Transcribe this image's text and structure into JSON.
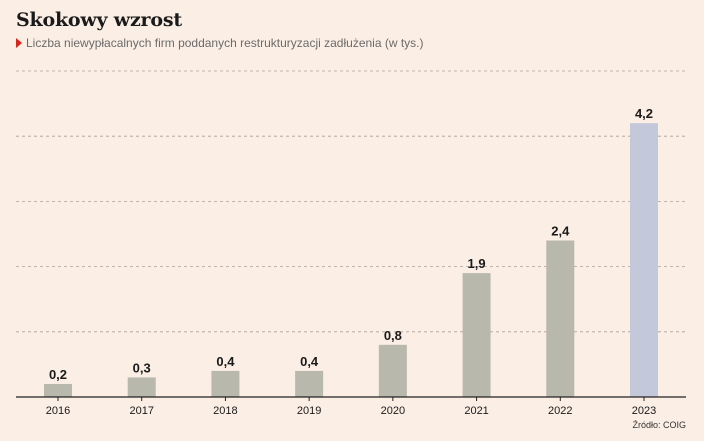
{
  "header": {
    "title": "Skokowy wzrost",
    "subtitle": "Liczba niewypłacalnych firm poddanych restrukturyzacji zadłużenia (w tys.)",
    "subtitle_marker_icon": "red-triangle-icon"
  },
  "footer": {
    "source": "Źródło: COIG"
  },
  "colors": {
    "background": "#fbeee4",
    "bar": "#b8b8ac",
    "highlight_bar": "#c3c8da",
    "marker": "#d7261e"
  },
  "chart_data": {
    "type": "bar",
    "categories": [
      "2016",
      "2017",
      "2018",
      "2019",
      "2020",
      "2021",
      "2022",
      "2023"
    ],
    "values": [
      0.2,
      0.3,
      0.4,
      0.4,
      0.8,
      1.9,
      2.4,
      4.2
    ],
    "value_labels": [
      "0,2",
      "0,3",
      "0,4",
      "0,4",
      "0,8",
      "1,9",
      "2,4",
      "4,2"
    ],
    "highlighted_category": "2023",
    "ylim": [
      0,
      5
    ],
    "gridlines": [
      1,
      2,
      3,
      4,
      5
    ],
    "grid": true,
    "y_axis_labels_shown": false
  }
}
